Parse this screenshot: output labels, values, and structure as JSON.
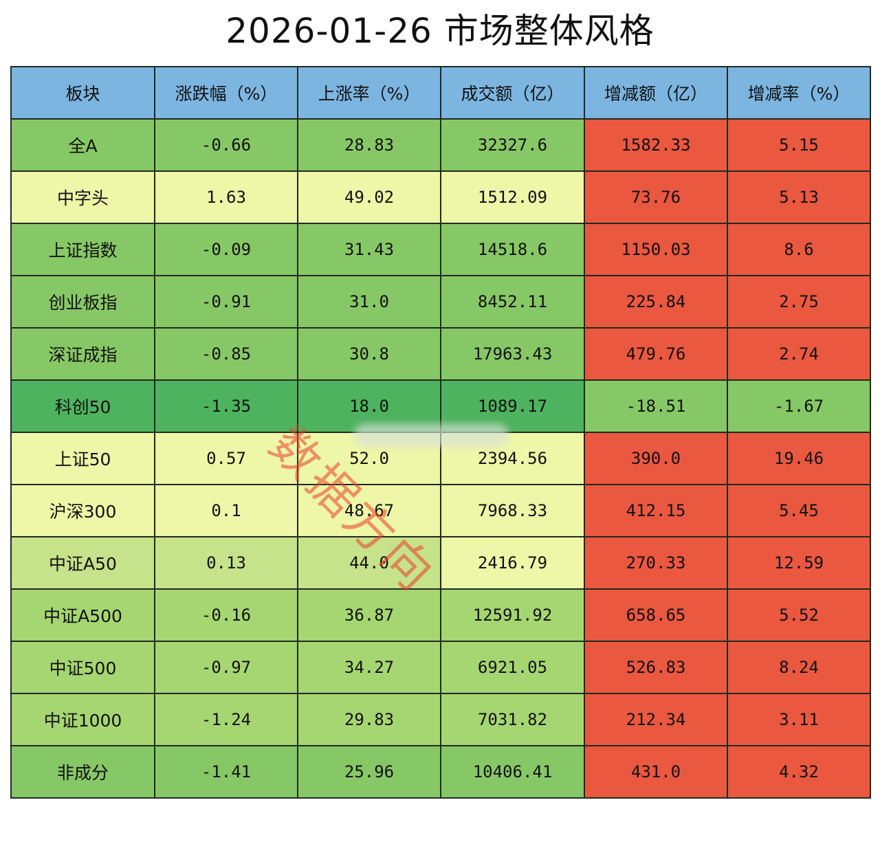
{
  "title": "2026-01-26 市场整体风格",
  "watermark": "数据方向",
  "table": {
    "headers": [
      "板块",
      "涨跌幅（%）",
      "上涨率（%）",
      "成交额（亿）",
      "增减额（亿）",
      "增减率（%）"
    ],
    "rows": [
      {
        "name": "全A",
        "cells": [
          "-0.66",
          "28.83",
          "32327.6",
          "1582.33",
          "5.15"
        ]
      },
      {
        "name": "中字头",
        "cells": [
          "1.63",
          "49.02",
          "1512.09",
          "73.76",
          "5.13"
        ]
      },
      {
        "name": "上证指数",
        "cells": [
          "-0.09",
          "31.43",
          "14518.6",
          "1150.03",
          "8.6"
        ]
      },
      {
        "name": "创业板指",
        "cells": [
          "-0.91",
          "31.0",
          "8452.11",
          "225.84",
          "2.75"
        ]
      },
      {
        "name": "深证成指",
        "cells": [
          "-0.85",
          "30.8",
          "17963.43",
          "479.76",
          "2.74"
        ]
      },
      {
        "name": "科创50",
        "cells": [
          "-1.35",
          "18.0",
          "1089.17",
          "-18.51",
          "-1.67"
        ]
      },
      {
        "name": "上证50",
        "cells": [
          "0.57",
          "52.0",
          "2394.56",
          "390.0",
          "19.46"
        ]
      },
      {
        "name": "沪深300",
        "cells": [
          "0.1",
          "48.67",
          "7968.33",
          "412.15",
          "5.45"
        ]
      },
      {
        "name": "中证A50",
        "cells": [
          "0.13",
          "44.0",
          "2416.79",
          "270.33",
          "12.59"
        ]
      },
      {
        "name": "中证A500",
        "cells": [
          "-0.16",
          "36.87",
          "12591.92",
          "658.65",
          "5.52"
        ]
      },
      {
        "name": "中证500",
        "cells": [
          "-0.97",
          "34.27",
          "6921.05",
          "526.83",
          "8.24"
        ]
      },
      {
        "name": "中证1000",
        "cells": [
          "-1.24",
          "29.83",
          "7031.82",
          "212.34",
          "3.11"
        ]
      },
      {
        "name": "非成分",
        "cells": [
          "-1.41",
          "25.96",
          "10406.41",
          "431.0",
          "4.32"
        ]
      }
    ]
  },
  "colors": {
    "header_bg": "#7cb5e0",
    "deep_green": "#4eb35e",
    "green": "#87c866",
    "mid_green": "#a6d671",
    "light_green": "#c6e28a",
    "pale_yellow": "#eef6a8",
    "red": "#ea5840",
    "border": "#1f2a1f",
    "watermark": "#eb3c28"
  },
  "cell_colors": [
    [
      "green",
      "green",
      "green",
      "green",
      "red",
      "red"
    ],
    [
      "pale_yellow",
      "pale_yellow",
      "pale_yellow",
      "pale_yellow",
      "red",
      "red"
    ],
    [
      "green",
      "green",
      "green",
      "green",
      "red",
      "red"
    ],
    [
      "green",
      "green",
      "green",
      "green",
      "red",
      "red"
    ],
    [
      "green",
      "green",
      "green",
      "green",
      "red",
      "red"
    ],
    [
      "deep_green",
      "deep_green",
      "deep_green",
      "deep_green",
      "green",
      "green"
    ],
    [
      "pale_yellow",
      "pale_yellow",
      "pale_yellow",
      "pale_yellow",
      "red",
      "red"
    ],
    [
      "pale_yellow",
      "pale_yellow",
      "pale_yellow",
      "pale_yellow",
      "red",
      "red"
    ],
    [
      "light_green",
      "light_green",
      "light_green",
      "pale_yellow",
      "red",
      "red"
    ],
    [
      "mid_green",
      "mid_green",
      "mid_green",
      "mid_green",
      "red",
      "red"
    ],
    [
      "mid_green",
      "mid_green",
      "mid_green",
      "mid_green",
      "red",
      "red"
    ],
    [
      "mid_green",
      "mid_green",
      "mid_green",
      "mid_green",
      "red",
      "red"
    ],
    [
      "green",
      "green",
      "green",
      "green",
      "red",
      "red"
    ]
  ]
}
